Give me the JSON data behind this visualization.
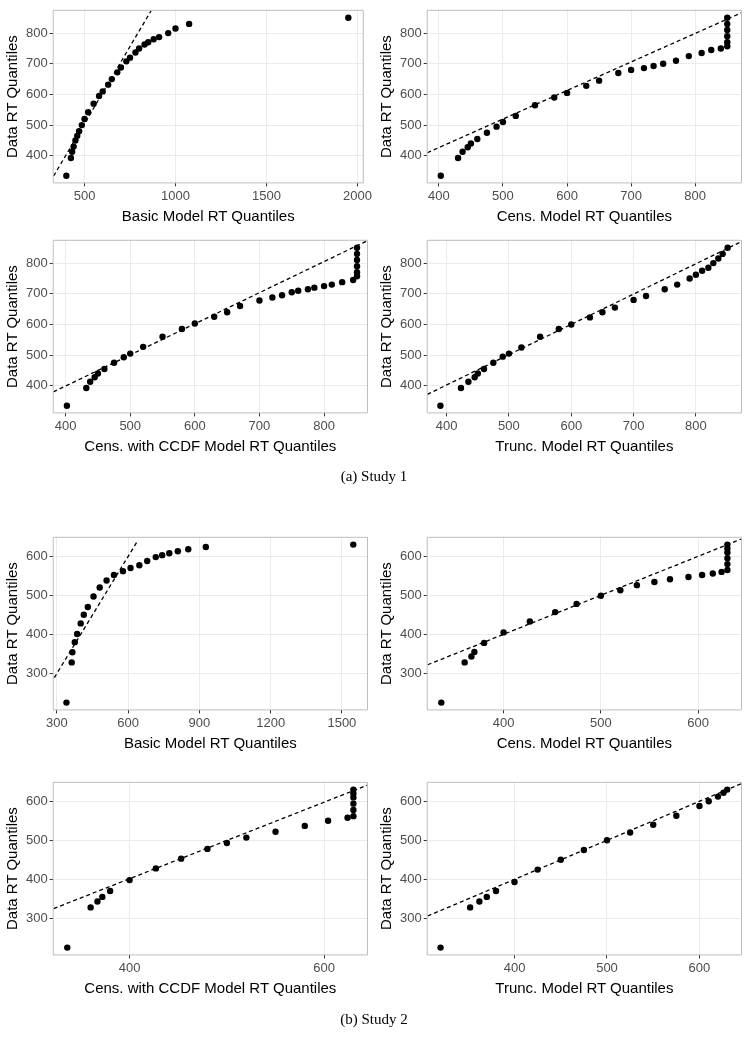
{
  "chart_data": [
    {
      "type": "scatter",
      "xlabel": "Basic Model RT Quantiles",
      "ylabel": "Data RT Quantiles",
      "xlim": [
        325,
        2035
      ],
      "ylim": [
        310,
        876
      ],
      "xticks": [
        500,
        1000,
        1500,
        2000
      ],
      "yticks": [
        400,
        500,
        600,
        700,
        800
      ],
      "grid": true,
      "series": [
        {
          "marker": "circle",
          "color": "#000000",
          "x": [
            400,
            425,
            432,
            440,
            450,
            460,
            470,
            485,
            500,
            520,
            550,
            580,
            600,
            630,
            650,
            680,
            700,
            730,
            750,
            780,
            800,
            830,
            850,
            880,
            910,
            960,
            1000,
            1075,
            1950
          ],
          "values": [
            335,
            393,
            413,
            430,
            450,
            465,
            480,
            500,
            520,
            542,
            570,
            595,
            610,
            632,
            650,
            672,
            688,
            708,
            720,
            737,
            750,
            763,
            770,
            780,
            787,
            800,
            815,
            830,
            850
          ]
        },
        {
          "type": "line",
          "marker": "none",
          "color": "#000000",
          "line_style": "dashed",
          "x": [
            330,
            866
          ],
          "values": [
            334,
            873
          ]
        }
      ]
    },
    {
      "type": "scatter",
      "xlabel": "Cens. Model RT Quantiles",
      "ylabel": "Data RT Quantiles",
      "xlim": [
        381,
        873
      ],
      "ylim": [
        310,
        876
      ],
      "xticks": [
        400,
        500,
        600,
        700,
        800
      ],
      "yticks": [
        400,
        500,
        600,
        700,
        800
      ],
      "grid": true,
      "series": [
        {
          "marker": "circle",
          "color": "#000000",
          "x": [
            403,
            430,
            437,
            445,
            450,
            460,
            475,
            490,
            500,
            520,
            550,
            580,
            600,
            630,
            650,
            680,
            700,
            720,
            735,
            750,
            770,
            790,
            810,
            825,
            840,
            850,
            850,
            850,
            850,
            850,
            850
          ],
          "values": [
            335,
            393,
            413,
            428,
            440,
            455,
            475,
            495,
            510,
            530,
            565,
            590,
            605,
            628,
            645,
            670,
            680,
            686,
            693,
            700,
            710,
            725,
            735,
            745,
            750,
            757,
            770,
            790,
            810,
            830,
            850
          ]
        },
        {
          "type": "line",
          "marker": "none",
          "color": "#000000",
          "line_style": "dashed",
          "x": [
            382,
            873
          ],
          "values": [
            410,
            867
          ]
        }
      ]
    },
    {
      "type": "scatter",
      "xlabel": "Cens. with CCDF Model RT Quantiles",
      "ylabel": "Data RT Quantiles",
      "xlim": [
        380,
        868
      ],
      "ylim": [
        310,
        876
      ],
      "xticks": [
        400,
        500,
        600,
        700,
        800
      ],
      "yticks": [
        400,
        500,
        600,
        700,
        800
      ],
      "grid": true,
      "series": [
        {
          "marker": "circle",
          "color": "#000000",
          "x": [
            402,
            432,
            438,
            445,
            450,
            460,
            475,
            490,
            500,
            520,
            550,
            580,
            600,
            630,
            650,
            670,
            700,
            720,
            735,
            750,
            760,
            775,
            785,
            800,
            812,
            828,
            845,
            851,
            851,
            851,
            851,
            851,
            851
          ],
          "values": [
            335,
            393,
            413,
            428,
            440,
            455,
            475,
            493,
            505,
            527,
            560,
            585,
            603,
            625,
            640,
            660,
            678,
            688,
            695,
            705,
            710,
            715,
            720,
            725,
            730,
            738,
            745,
            757,
            770,
            790,
            810,
            830,
            850
          ]
        },
        {
          "type": "line",
          "marker": "none",
          "color": "#000000",
          "line_style": "dashed",
          "x": [
            381,
            868
          ],
          "values": [
            380,
            874
          ]
        }
      ]
    },
    {
      "type": "scatter",
      "xlabel": "Trunc. Model RT Quantiles",
      "ylabel": "Data RT Quantiles",
      "xlim": [
        368,
        874
      ],
      "ylim": [
        310,
        876
      ],
      "xticks": [
        400,
        500,
        600,
        700,
        800
      ],
      "yticks": [
        400,
        500,
        600,
        700,
        800
      ],
      "grid": true,
      "annotations": [
        "(a) Study 1"
      ],
      "series": [
        {
          "marker": "circle",
          "color": "#000000",
          "x": [
            390,
            423,
            435,
            445,
            450,
            460,
            475,
            490,
            500,
            520,
            550,
            580,
            600,
            630,
            650,
            670,
            700,
            720,
            750,
            770,
            790,
            800,
            810,
            820,
            828,
            836,
            843,
            851
          ],
          "values": [
            335,
            393,
            413,
            428,
            440,
            455,
            475,
            495,
            505,
            525,
            560,
            585,
            600,
            623,
            640,
            655,
            680,
            693,
            715,
            730,
            750,
            762,
            775,
            785,
            800,
            815,
            830,
            850
          ]
        },
        {
          "type": "line",
          "marker": "none",
          "color": "#000000",
          "line_style": "dashed",
          "x": [
            369,
            874
          ],
          "values": [
            372,
            871
          ]
        }
      ]
    },
    {
      "type": "scatter",
      "xlabel": "Basic Model RT Quantiles",
      "ylabel": "Data RT Quantiles",
      "xlim": [
        282,
        1610
      ],
      "ylim": [
        205,
        650
      ],
      "xticks": [
        300,
        600,
        900,
        1200,
        1500
      ],
      "yticks": [
        300,
        400,
        500,
        600
      ],
      "grid": true,
      "series": [
        {
          "marker": "circle",
          "color": "#000000",
          "x": [
            340,
            362,
            365,
            375,
            385,
            400,
            413,
            430,
            454,
            480,
            509,
            540,
            578,
            610,
            647,
            680,
            716,
            743,
            773,
            809,
            853,
            927,
            1548
          ],
          "values": [
            225,
            328,
            354,
            380,
            401,
            428,
            450,
            470,
            497,
            520,
            538,
            552,
            562,
            570,
            577,
            588,
            598,
            603,
            608,
            613,
            618,
            624,
            630
          ]
        },
        {
          "type": "line",
          "marker": "none",
          "color": "#000000",
          "line_style": "dashed",
          "x": [
            289,
            640
          ],
          "values": [
            289,
            640
          ]
        }
      ]
    },
    {
      "type": "scatter",
      "xlabel": "Cens. Model RT Quantiles",
      "ylabel": "Data RT Quantiles",
      "xlim": [
        321,
        645
      ],
      "ylim": [
        205,
        650
      ],
      "xticks": [
        400,
        500,
        600
      ],
      "yticks": [
        300,
        400,
        500,
        600
      ],
      "grid": true,
      "series": [
        {
          "marker": "circle",
          "color": "#000000",
          "x": [
            336,
            360,
            367,
            370,
            380,
            400,
            427,
            453,
            475,
            500,
            520,
            537,
            555,
            571,
            590,
            604,
            615,
            624,
            630,
            630,
            630,
            630,
            630,
            630
          ],
          "values": [
            225,
            328,
            343,
            355,
            378,
            405,
            433,
            457,
            478,
            499,
            513,
            526,
            534,
            541,
            547,
            552,
            556,
            560,
            565,
            580,
            595,
            610,
            620,
            630
          ]
        },
        {
          "type": "line",
          "marker": "none",
          "color": "#000000",
          "line_style": "dashed",
          "x": [
            322,
            645
          ],
          "values": [
            322,
            645
          ]
        }
      ]
    },
    {
      "type": "scatter",
      "xlabel": "Cens. with CCDF Model RT Quantiles",
      "ylabel": "Data RT Quantiles",
      "xlim": [
        321,
        645
      ],
      "ylim": [
        205,
        650
      ],
      "xticks": [
        400,
        600
      ],
      "yticks": [
        300,
        400,
        500,
        600
      ],
      "grid": true,
      "series": [
        {
          "marker": "circle",
          "color": "#000000",
          "x": [
            336,
            360,
            367,
            372,
            380,
            400,
            427,
            453,
            480,
            500,
            520,
            550,
            580,
            604,
            624,
            630,
            630,
            630,
            630,
            630,
            630
          ],
          "values": [
            225,
            328,
            343,
            355,
            370,
            398,
            428,
            453,
            478,
            493,
            507,
            522,
            537,
            550,
            558,
            562,
            578,
            594,
            610,
            620,
            630
          ]
        },
        {
          "type": "line",
          "marker": "none",
          "color": "#000000",
          "line_style": "dashed",
          "x": [
            322,
            645
          ],
          "values": [
            325,
            642
          ]
        }
      ]
    },
    {
      "type": "scatter",
      "xlabel": "Trunc. Model RT Quantiles",
      "ylabel": "Data RT Quantiles",
      "xlim": [
        305,
        646
      ],
      "ylim": [
        205,
        650
      ],
      "xticks": [
        400,
        500,
        600
      ],
      "yticks": [
        300,
        400,
        500,
        600
      ],
      "grid": true,
      "annotations": [
        "(b) Study 2"
      ],
      "series": [
        {
          "marker": "circle",
          "color": "#000000",
          "x": [
            320,
            352,
            362,
            370,
            380,
            400,
            425,
            450,
            475,
            500,
            525,
            550,
            575,
            600,
            610,
            620,
            626,
            630
          ],
          "values": [
            225,
            328,
            343,
            355,
            370,
            393,
            425,
            450,
            475,
            500,
            520,
            540,
            563,
            588,
            600,
            612,
            622,
            630
          ]
        },
        {
          "type": "line",
          "marker": "none",
          "color": "#000000",
          "line_style": "dashed",
          "x": [
            306,
            646
          ],
          "values": [
            306,
            646
          ]
        }
      ]
    }
  ]
}
